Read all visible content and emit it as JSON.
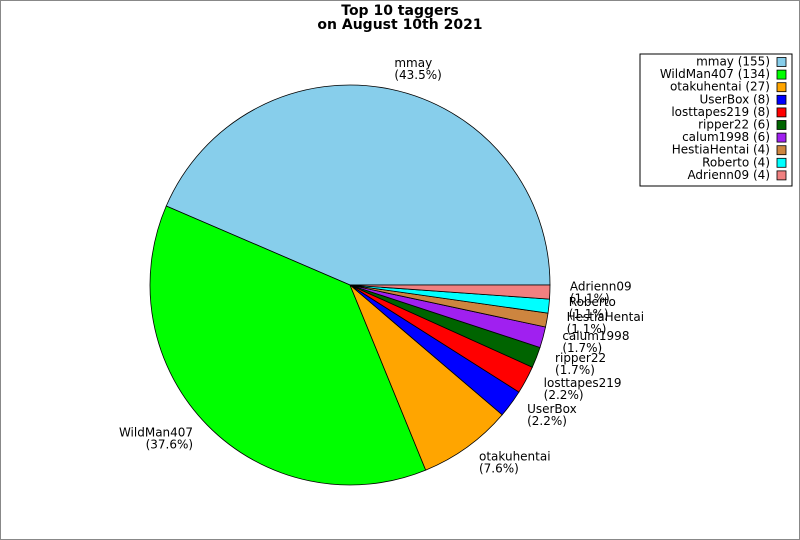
{
  "chart_data": {
    "type": "pie",
    "title": "Top 10 taggers",
    "subtitle": "on August 10th 2021",
    "categories": [
      "mmay",
      "WildMan407",
      "otakuhentai",
      "UserBox",
      "losttapes219",
      "ripper22",
      "calum1998",
      "HestiaHentai",
      "Roberto",
      "Adrienn09"
    ],
    "values": [
      155,
      134,
      27,
      8,
      8,
      6,
      6,
      4,
      4,
      4
    ],
    "percent_labels": [
      "(43.5%)",
      "(37.6%)",
      "(7.6%)",
      "(2.2%)",
      "(2.2%)",
      "(1.7%)",
      "(1.7%)",
      "(1.1%)",
      "(1.1%)",
      "(1.1%)"
    ],
    "legend_labels": [
      "mmay (155)",
      "WildMan407 (134)",
      "otakuhentai (27)",
      "UserBox (8)",
      "losttapes219 (8)",
      "ripper22 (6)",
      "calum1998 (6)",
      "HestiaHentai (4)",
      "Roberto (4)",
      "Adrienn09 (4)"
    ],
    "colors": [
      "#87ceeb",
      "#00ff00",
      "#ffa500",
      "#0000ff",
      "#ff0000",
      "#006400",
      "#a020f0",
      "#cd853f",
      "#00ffff",
      "#f08080"
    ],
    "legend": "upper right"
  }
}
